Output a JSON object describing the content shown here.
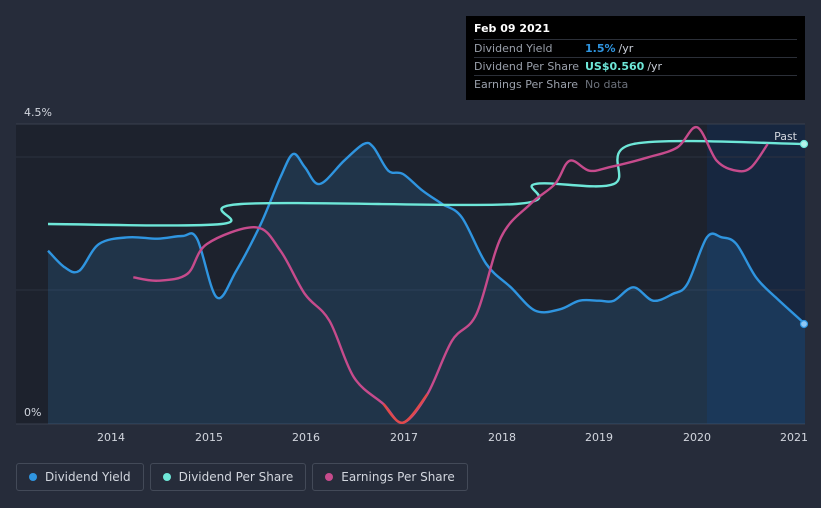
{
  "tooltip": {
    "date": "Feb 09 2021",
    "rows": [
      {
        "label": "Dividend Yield",
        "value": "1.5%",
        "unit": "/yr",
        "color": "#2f95e0"
      },
      {
        "label": "Dividend Per Share",
        "value": "US$0.560",
        "unit": "/yr",
        "color": "#6ee7d8"
      },
      {
        "label": "Earnings Per Share",
        "value": "No data",
        "unit": "",
        "color": "#6c717b"
      }
    ]
  },
  "past_label": "Past",
  "legend": [
    {
      "label": "Dividend Yield",
      "color": "#2f95e0"
    },
    {
      "label": "Dividend Per Share",
      "color": "#6ee7d8"
    },
    {
      "label": "Earnings Per Share",
      "color": "#c64b8c"
    }
  ],
  "chart_data": {
    "type": "line",
    "x_ticks": [
      "2014",
      "2015",
      "2016",
      "2017",
      "2018",
      "2019",
      "2020",
      "2021"
    ],
    "y_ticks": [
      "4.5%",
      "0%"
    ],
    "ylim_yield": [
      0,
      4.5
    ],
    "xlim": [
      2013.38,
      2021.1
    ],
    "series": [
      {
        "name": "Dividend Yield",
        "color": "#2f95e0",
        "points": [
          [
            2013.38,
            2.6
          ],
          [
            2013.55,
            2.35
          ],
          [
            2013.7,
            2.3
          ],
          [
            2013.9,
            2.7
          ],
          [
            2014.2,
            2.8
          ],
          [
            2014.5,
            2.78
          ],
          [
            2014.75,
            2.82
          ],
          [
            2014.9,
            2.78
          ],
          [
            2015.1,
            1.9
          ],
          [
            2015.3,
            2.3
          ],
          [
            2015.55,
            3.0
          ],
          [
            2015.75,
            3.7
          ],
          [
            2015.88,
            4.05
          ],
          [
            2016.0,
            3.85
          ],
          [
            2016.15,
            3.6
          ],
          [
            2016.4,
            3.95
          ],
          [
            2016.6,
            4.2
          ],
          [
            2016.7,
            4.15
          ],
          [
            2016.85,
            3.8
          ],
          [
            2017.0,
            3.75
          ],
          [
            2017.2,
            3.5
          ],
          [
            2017.4,
            3.3
          ],
          [
            2017.6,
            3.1
          ],
          [
            2017.85,
            2.4
          ],
          [
            2018.1,
            2.05
          ],
          [
            2018.35,
            1.7
          ],
          [
            2018.6,
            1.72
          ],
          [
            2018.8,
            1.85
          ],
          [
            2019.0,
            1.85
          ],
          [
            2019.15,
            1.85
          ],
          [
            2019.35,
            2.05
          ],
          [
            2019.55,
            1.85
          ],
          [
            2019.75,
            1.95
          ],
          [
            2019.9,
            2.1
          ],
          [
            2020.1,
            2.8
          ],
          [
            2020.25,
            2.8
          ],
          [
            2020.4,
            2.7
          ],
          [
            2020.6,
            2.2
          ],
          [
            2020.8,
            1.9
          ],
          [
            2021.1,
            1.5
          ]
        ]
      },
      {
        "name": "Dividend Per Share",
        "color": "#6ee7d8",
        "points": [
          [
            2013.38,
            3.0
          ],
          [
            2015.15,
            3.0
          ],
          [
            2015.35,
            3.3
          ],
          [
            2018.15,
            3.3
          ],
          [
            2018.35,
            3.6
          ],
          [
            2019.15,
            3.6
          ],
          [
            2019.35,
            4.2
          ],
          [
            2021.1,
            4.2
          ]
        ]
      },
      {
        "name": "Earnings Per Share",
        "color": "#c64b8c",
        "points": [
          [
            2014.25,
            2.2
          ],
          [
            2014.5,
            2.15
          ],
          [
            2014.8,
            2.25
          ],
          [
            2015.0,
            2.7
          ],
          [
            2015.5,
            2.95
          ],
          [
            2015.75,
            2.6
          ],
          [
            2016.0,
            1.95
          ],
          [
            2016.25,
            1.55
          ],
          [
            2016.5,
            0.7
          ],
          [
            2016.8,
            0.3
          ],
          [
            2017.0,
            0.02
          ],
          [
            2017.25,
            0.45
          ],
          [
            2017.5,
            1.25
          ],
          [
            2017.75,
            1.65
          ],
          [
            2018.0,
            2.8
          ],
          [
            2018.3,
            3.3
          ],
          [
            2018.55,
            3.6
          ],
          [
            2018.7,
            3.95
          ],
          [
            2018.9,
            3.8
          ],
          [
            2019.1,
            3.85
          ],
          [
            2019.5,
            4.0
          ],
          [
            2019.8,
            4.15
          ],
          [
            2020.0,
            4.45
          ],
          [
            2020.2,
            3.95
          ],
          [
            2020.4,
            3.8
          ],
          [
            2020.55,
            3.85
          ],
          [
            2020.72,
            4.2
          ]
        ]
      }
    ]
  }
}
